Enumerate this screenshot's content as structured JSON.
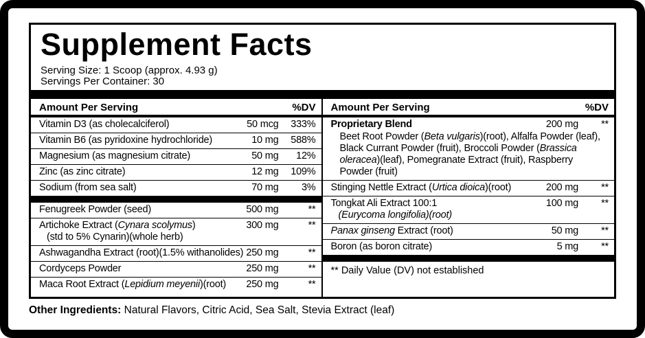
{
  "label": {
    "title": "Supplement Facts",
    "serving_size": "Serving Size: 1 Scoop (approx. 4.93 g)",
    "servings_per_container": "Servings Per Container: 30",
    "header_amount": "Amount Per Serving",
    "header_dv": "%DV",
    "other_ingredients_label": "Other Ingredients:",
    "other_ingredients_text": " Natural Flavors, Citric Acid, Sea Salt, Stevia Extract (leaf)"
  },
  "colors": {
    "ink": "#000000",
    "paper": "#ffffff"
  },
  "columns": {
    "left": {
      "sections": [
        {
          "rows": [
            {
              "name": [
                {
                  "t": "Vitamin D3 (as cholecalciferol)"
                }
              ],
              "amount": "50 mcg",
              "dv": "333%"
            },
            {
              "name": [
                {
                  "t": "Vitamin B6 (as pyridoxine hydrochloride)"
                }
              ],
              "amount": "10 mg",
              "dv": "588%"
            },
            {
              "name": [
                {
                  "t": "Magnesium (as magnesium citrate)"
                }
              ],
              "amount": "50 mg",
              "dv": "12%"
            },
            {
              "name": [
                {
                  "t": "Zinc (as zinc citrate)"
                }
              ],
              "amount": "12 mg",
              "dv": "109%"
            },
            {
              "name": [
                {
                  "t": "Sodium (from sea salt)"
                }
              ],
              "amount": "70 mg",
              "dv": "3%"
            }
          ]
        },
        {
          "rows": [
            {
              "name": [
                {
                  "t": "Fenugreek Powder (seed)"
                }
              ],
              "amount": "500 mg",
              "dv": "**"
            },
            {
              "name": [
                {
                  "t": "Artichoke Extract ("
                },
                {
                  "t": "Cynara scolymus",
                  "i": true
                },
                {
                  "t": ")"
                }
              ],
              "sub": [
                {
                  "t": "(std to 5% Cynarin)(whole herb)"
                }
              ],
              "amount": "300 mg",
              "dv": "**"
            },
            {
              "name": [
                {
                  "t": "Ashwagandha Extract (root)(1.5% withanolides)"
                }
              ],
              "amount": "250 mg",
              "dv": "**"
            },
            {
              "name": [
                {
                  "t": "Cordyceps Powder"
                }
              ],
              "amount": "250 mg",
              "dv": "**"
            },
            {
              "name": [
                {
                  "t": "Maca Root Extract ("
                },
                {
                  "t": "Lepidium meyenii",
                  "i": true
                },
                {
                  "t": ")(root)"
                }
              ],
              "amount": "250 mg",
              "dv": "**"
            }
          ]
        }
      ]
    },
    "right": {
      "sections": [
        {
          "rows": [
            {
              "name": [
                {
                  "t": "Proprietary Blend",
                  "b": true
                }
              ],
              "amount": "200 mg",
              "dv": "**",
              "desc": [
                {
                  "t": "Beet Root Powder ("
                },
                {
                  "t": "Beta vulgaris",
                  "i": true
                },
                {
                  "t": ")(root), Alfalfa Powder (leaf), Black Currant Powder (fruit), Broccoli Powder ("
                },
                {
                  "t": "Brassica oleracea",
                  "i": true
                },
                {
                  "t": ")(leaf), Pomegranate Extract (fruit), Raspberry Powder (fruit)"
                }
              ]
            },
            {
              "name": [
                {
                  "t": "Stinging Nettle Extract ("
                },
                {
                  "t": "Urtica dioica",
                  "i": true
                },
                {
                  "t": ")(root)"
                }
              ],
              "amount": "200 mg",
              "dv": "**"
            },
            {
              "name": [
                {
                  "t": "Tongkat Ali Extract 100:1"
                }
              ],
              "sub": [
                {
                  "t": "(Eurycoma longifolia)(root)",
                  "i": true
                }
              ],
              "amount": "100 mg",
              "dv": "**"
            },
            {
              "name": [
                {
                  "t": "Panax ginseng",
                  "i": true
                },
                {
                  "t": " Extract (root)"
                }
              ],
              "amount": "50 mg",
              "dv": "**"
            },
            {
              "name": [
                {
                  "t": "Boron (as boron citrate)"
                }
              ],
              "amount": "5 mg",
              "dv": "**"
            }
          ]
        }
      ],
      "footnote": "** Daily Value (DV) not established"
    }
  }
}
